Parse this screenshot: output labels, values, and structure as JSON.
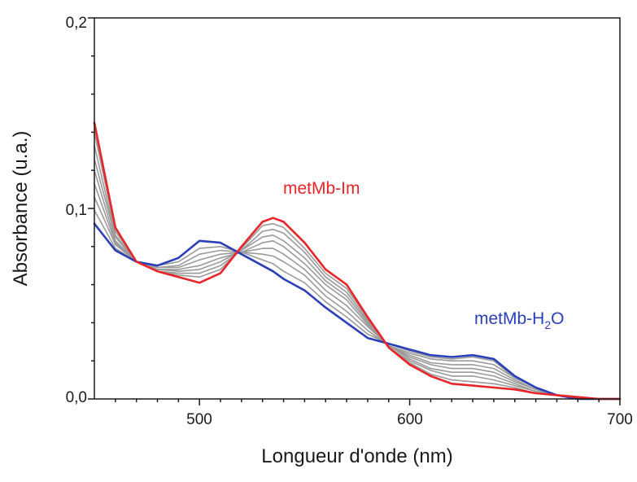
{
  "chart_data": {
    "type": "line",
    "title": "",
    "xlabel": "Longueur d'onde (nm)",
    "ylabel": "Absorbance (u.a.)",
    "xlim": [
      450,
      700
    ],
    "ylim": [
      0,
      0.2
    ],
    "x_ticks": [
      500,
      600,
      700
    ],
    "x_tick_labels": [
      "500",
      "600",
      "700"
    ],
    "y_ticks": [
      0,
      0.1,
      0.2
    ],
    "y_tick_labels": [
      "0,0",
      "0,1",
      "0,2"
    ],
    "grid": false,
    "colors": {
      "im": "#e8262a",
      "h2o": "#2a3fb8",
      "intermediate": "#9a9a9a",
      "axis": "#1a1a1a"
    },
    "annotations": [
      {
        "text": "metMb-Im",
        "color": "#e8262a"
      },
      {
        "text": "metMb-H",
        "sub": "2",
        "tail": "O",
        "color": "#2a3fb8"
      }
    ],
    "x": [
      450,
      460,
      470,
      480,
      490,
      500,
      510,
      520,
      530,
      535,
      540,
      550,
      560,
      570,
      580,
      590,
      600,
      610,
      620,
      630,
      640,
      650,
      660,
      670,
      680,
      690,
      700
    ],
    "series": [
      {
        "role": "endpoint-im",
        "values": [
          0.145,
          0.09,
          0.072,
          0.067,
          0.064,
          0.061,
          0.066,
          0.08,
          0.093,
          0.095,
          0.093,
          0.082,
          0.068,
          0.06,
          0.043,
          0.027,
          0.018,
          0.012,
          0.008,
          0.007,
          0.006,
          0.005,
          0.003,
          0.002,
          0.001,
          0.0,
          0.0
        ]
      },
      {
        "role": "endpoint-h2o",
        "values": [
          0.092,
          0.078,
          0.072,
          0.07,
          0.074,
          0.083,
          0.082,
          0.076,
          0.07,
          0.067,
          0.063,
          0.057,
          0.048,
          0.04,
          0.032,
          0.029,
          0.026,
          0.023,
          0.022,
          0.023,
          0.021,
          0.012,
          0.006,
          0.002,
          0.0,
          0.0,
          0.0
        ]
      },
      {
        "role": "intermediate",
        "values": [
          0.14,
          0.088,
          0.072,
          0.067,
          0.065,
          0.064,
          0.068,
          0.079,
          0.091,
          0.092,
          0.09,
          0.079,
          0.066,
          0.058,
          0.042,
          0.027,
          0.019,
          0.013,
          0.01,
          0.009,
          0.008,
          0.006,
          0.003,
          0.002,
          0.001,
          0.0,
          0.0
        ]
      },
      {
        "role": "intermediate",
        "values": [
          0.133,
          0.086,
          0.072,
          0.067,
          0.066,
          0.066,
          0.07,
          0.078,
          0.088,
          0.089,
          0.087,
          0.077,
          0.064,
          0.056,
          0.041,
          0.027,
          0.02,
          0.015,
          0.012,
          0.012,
          0.01,
          0.007,
          0.004,
          0.002,
          0.001,
          0.0,
          0.0
        ]
      },
      {
        "role": "intermediate",
        "values": [
          0.126,
          0.085,
          0.072,
          0.068,
          0.067,
          0.068,
          0.072,
          0.078,
          0.085,
          0.086,
          0.083,
          0.074,
          0.062,
          0.054,
          0.04,
          0.028,
          0.021,
          0.016,
          0.014,
          0.014,
          0.012,
          0.008,
          0.004,
          0.002,
          0.001,
          0.0,
          0.0
        ]
      },
      {
        "role": "intermediate",
        "values": [
          0.12,
          0.083,
          0.072,
          0.068,
          0.068,
          0.07,
          0.074,
          0.077,
          0.082,
          0.083,
          0.08,
          0.071,
          0.06,
          0.052,
          0.039,
          0.028,
          0.022,
          0.018,
          0.016,
          0.016,
          0.014,
          0.009,
          0.005,
          0.002,
          0.001,
          0.0,
          0.0
        ]
      },
      {
        "role": "intermediate",
        "values": [
          0.113,
          0.082,
          0.072,
          0.069,
          0.069,
          0.073,
          0.076,
          0.077,
          0.079,
          0.079,
          0.076,
          0.068,
          0.057,
          0.049,
          0.038,
          0.028,
          0.023,
          0.019,
          0.018,
          0.018,
          0.016,
          0.01,
          0.005,
          0.002,
          0.0,
          0.0,
          0.0
        ]
      },
      {
        "role": "intermediate",
        "values": [
          0.106,
          0.081,
          0.072,
          0.069,
          0.07,
          0.076,
          0.078,
          0.077,
          0.076,
          0.075,
          0.072,
          0.065,
          0.054,
          0.046,
          0.036,
          0.028,
          0.024,
          0.021,
          0.02,
          0.02,
          0.018,
          0.011,
          0.006,
          0.002,
          0.0,
          0.0,
          0.0
        ]
      },
      {
        "role": "intermediate",
        "values": [
          0.099,
          0.079,
          0.072,
          0.07,
          0.072,
          0.079,
          0.08,
          0.077,
          0.073,
          0.071,
          0.067,
          0.061,
          0.051,
          0.043,
          0.034,
          0.029,
          0.025,
          0.022,
          0.021,
          0.022,
          0.02,
          0.011,
          0.006,
          0.002,
          0.0,
          0.0,
          0.0
        ]
      }
    ]
  }
}
